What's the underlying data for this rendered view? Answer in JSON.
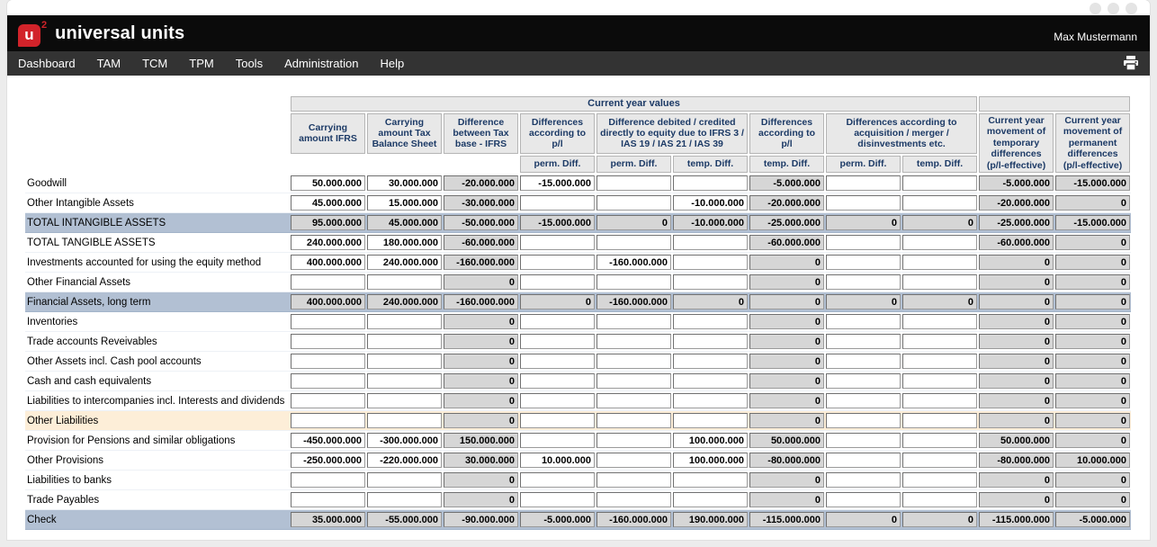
{
  "header": {
    "logo_mark": "u",
    "logo_sup": "2",
    "brand_title": "universal units",
    "user_name": "Max Mustermann"
  },
  "nav": {
    "items": [
      "Dashboard",
      "TAM",
      "TCM",
      "TPM",
      "Tools",
      "Administration",
      "Help"
    ],
    "icons": {
      "print": "printer-icon"
    }
  },
  "colors": {
    "logo_red": "#d2232a",
    "header_text": "#1c3a66",
    "subtotal_row_bg": "#b2c0d3",
    "warning_row_bg": "#fdeed8",
    "readonly_cell_bg": "#d6d6d6"
  },
  "table": {
    "group_header": "Current year values",
    "columns": {
      "carrying_ifrs": "Carrying amount IFRS",
      "carrying_tax": "Carrying amount Tax Balance Sheet",
      "diff_tax_ifrs": "Difference between Tax base - IFRS",
      "pl_perm": "Differences according to p/l",
      "equity": "Difference debited / credited directly to equity due to IFRS 3 / IAS 19 / IAS 21 / IAS 39",
      "pl_temp": "Differences according to p/l",
      "acquisition": "Differences according to acquisition / merger / disinvestments etc.",
      "movement_temp": "Current year movement of temporary differences (p/l-effective)",
      "movement_perm": "Current year movement of permanent differences (p/l-effective)"
    },
    "sub_headers": [
      "perm. Diff.",
      "perm. Diff.",
      "temp. Diff.",
      "temp. Diff.",
      "perm. Diff.",
      "temp. Diff."
    ],
    "readonly_cols": [
      2,
      6,
      9,
      10
    ],
    "rows": [
      {
        "label": "Goodwill",
        "style": "normal",
        "values": [
          "50.000.000",
          "30.000.000",
          "-20.000.000",
          "-15.000.000",
          "",
          "",
          "-5.000.000",
          "",
          "",
          "-5.000.000",
          "-15.000.000"
        ]
      },
      {
        "label": "Other Intangible Assets",
        "style": "normal",
        "values": [
          "45.000.000",
          "15.000.000",
          "-30.000.000",
          "",
          "",
          "-10.000.000",
          "-20.000.000",
          "",
          "",
          "-20.000.000",
          "0"
        ]
      },
      {
        "label": "TOTAL INTANGIBLE ASSETS",
        "style": "subtotal",
        "values": [
          "95.000.000",
          "45.000.000",
          "-50.000.000",
          "-15.000.000",
          "0",
          "-10.000.000",
          "-25.000.000",
          "0",
          "0",
          "-25.000.000",
          "-15.000.000"
        ]
      },
      {
        "label": "TOTAL TANGIBLE ASSETS",
        "style": "normal",
        "values": [
          "240.000.000",
          "180.000.000",
          "-60.000.000",
          "",
          "",
          "",
          "-60.000.000",
          "",
          "",
          "-60.000.000",
          "0"
        ]
      },
      {
        "label": "Investments accounted for using the equity method",
        "style": "normal",
        "values": [
          "400.000.000",
          "240.000.000",
          "-160.000.000",
          "",
          "-160.000.000",
          "",
          "0",
          "",
          "",
          "0",
          "0"
        ]
      },
      {
        "label": "Other Financial Assets",
        "style": "normal",
        "values": [
          "",
          "",
          "0",
          "",
          "",
          "",
          "0",
          "",
          "",
          "0",
          "0"
        ]
      },
      {
        "label": "Financial Assets, long term",
        "style": "subtotal",
        "values": [
          "400.000.000",
          "240.000.000",
          "-160.000.000",
          "0",
          "-160.000.000",
          "0",
          "0",
          "0",
          "0",
          "0",
          "0"
        ]
      },
      {
        "label": "Inventories",
        "style": "normal",
        "values": [
          "",
          "",
          "0",
          "",
          "",
          "",
          "0",
          "",
          "",
          "0",
          "0"
        ]
      },
      {
        "label": "Trade accounts Reveivables",
        "style": "normal",
        "values": [
          "",
          "",
          "0",
          "",
          "",
          "",
          "0",
          "",
          "",
          "0",
          "0"
        ]
      },
      {
        "label": "Other Assets incl. Cash pool accounts",
        "style": "normal",
        "values": [
          "",
          "",
          "0",
          "",
          "",
          "",
          "0",
          "",
          "",
          "0",
          "0"
        ]
      },
      {
        "label": "Cash and cash equivalents",
        "style": "normal",
        "values": [
          "",
          "",
          "0",
          "",
          "",
          "",
          "0",
          "",
          "",
          "0",
          "0"
        ]
      },
      {
        "label": "Liabilities to intercompanies incl. Interests and dividends",
        "style": "normal",
        "values": [
          "",
          "",
          "0",
          "",
          "",
          "",
          "0",
          "",
          "",
          "0",
          "0"
        ]
      },
      {
        "label": "Other Liabilities",
        "style": "warning",
        "values": [
          "",
          "",
          "0",
          "",
          "",
          "",
          "0",
          "",
          "",
          "0",
          "0"
        ]
      },
      {
        "label": "Provision for Pensions and similar obligations",
        "style": "normal",
        "values": [
          "-450.000.000",
          "-300.000.000",
          "150.000.000",
          "",
          "",
          "100.000.000",
          "50.000.000",
          "",
          "",
          "50.000.000",
          "0"
        ]
      },
      {
        "label": "Other Provisions",
        "style": "normal",
        "values": [
          "-250.000.000",
          "-220.000.000",
          "30.000.000",
          "10.000.000",
          "",
          "100.000.000",
          "-80.000.000",
          "",
          "",
          "-80.000.000",
          "10.000.000"
        ]
      },
      {
        "label": "Liabilities to banks",
        "style": "normal",
        "values": [
          "",
          "",
          "0",
          "",
          "",
          "",
          "0",
          "",
          "",
          "0",
          "0"
        ]
      },
      {
        "label": "Trade Payables",
        "style": "normal",
        "values": [
          "",
          "",
          "0",
          "",
          "",
          "",
          "0",
          "",
          "",
          "0",
          "0"
        ]
      },
      {
        "label": "Check",
        "style": "subtotal",
        "values": [
          "35.000.000",
          "-55.000.000",
          "-90.000.000",
          "-5.000.000",
          "-160.000.000",
          "190.000.000",
          "-115.000.000",
          "0",
          "0",
          "-115.000.000",
          "-5.000.000"
        ]
      }
    ]
  }
}
